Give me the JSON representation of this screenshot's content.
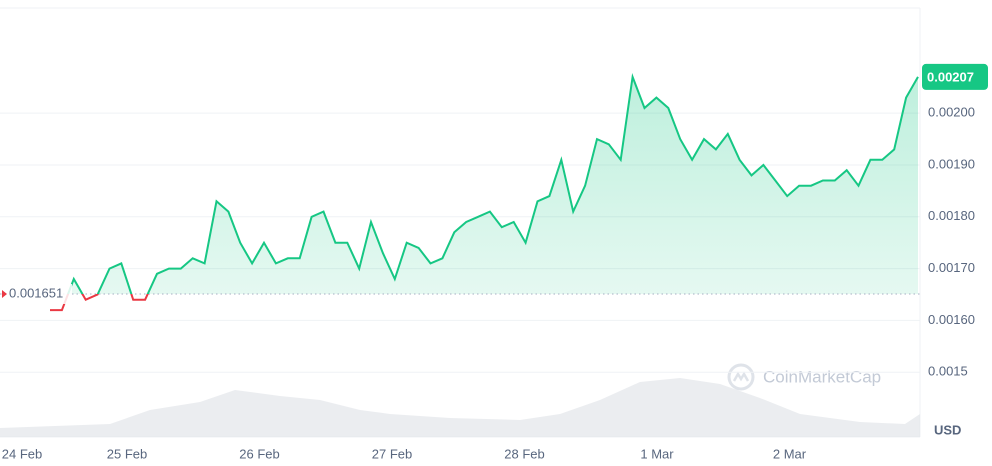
{
  "chart_data": {
    "type": "line",
    "values": [
      0.00162,
      0.00162,
      0.00168,
      0.00164,
      0.00165,
      0.0017,
      0.00171,
      0.00164,
      0.00164,
      0.00169,
      0.0017,
      0.0017,
      0.00172,
      0.00171,
      0.00183,
      0.00181,
      0.00175,
      0.00171,
      0.00175,
      0.00171,
      0.00172,
      0.00172,
      0.0018,
      0.00181,
      0.00175,
      0.00175,
      0.0017,
      0.00179,
      0.00173,
      0.00168,
      0.00175,
      0.00174,
      0.00171,
      0.00172,
      0.00177,
      0.00179,
      0.0018,
      0.00181,
      0.00178,
      0.00179,
      0.00175,
      0.00183,
      0.00184,
      0.00191,
      0.00181,
      0.00186,
      0.00195,
      0.00194,
      0.00191,
      0.00207,
      0.00201,
      0.00203,
      0.00201,
      0.00195,
      0.00191,
      0.00195,
      0.00193,
      0.00196,
      0.00191,
      0.00188,
      0.0019,
      0.00187,
      0.00184,
      0.00186,
      0.00186,
      0.00187,
      0.00187,
      0.00189,
      0.00186,
      0.00191,
      0.00191,
      0.00193,
      0.00203,
      0.00207
    ],
    "color": "#16c784",
    "down_color": "#ea3943",
    "price_label": "0.00207",
    "baseline": 0.001651,
    "baseline_label": "0.001651",
    "xtick_labels": [
      "24 Feb",
      "25 Feb",
      "26 Feb",
      "27 Feb",
      "28 Feb",
      "1 Mar",
      "2 Mar"
    ],
    "ylim": [
      0.001375,
      0.002203
    ],
    "yticks": [
      {
        "value": 0.0015,
        "label": "0.0015"
      },
      {
        "value": 0.0016,
        "label": "0.00160"
      },
      {
        "value": 0.0017,
        "label": "0.00170"
      },
      {
        "value": 0.0018,
        "label": "0.00180"
      },
      {
        "value": 0.0019,
        "label": "0.00190"
      },
      {
        "value": 0.002,
        "label": "0.00200"
      }
    ],
    "grid": true,
    "watermark": "CoinMarketCap",
    "unit": "USD"
  }
}
